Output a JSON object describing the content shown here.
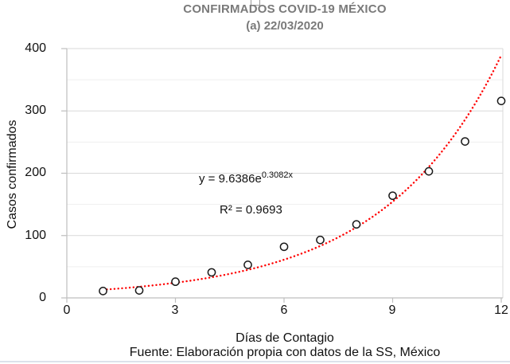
{
  "title": {
    "line1": "CONFIRMADOS COVID-19 MÉXICO",
    "line2": "(a) 22/03/2020"
  },
  "y_axis": {
    "label": "Casos confirmados",
    "tick_labels": [
      "0",
      "100",
      "200",
      "300",
      "400"
    ]
  },
  "x_axis": {
    "label": "Días de Contagio",
    "tick_labels": [
      "0",
      "3",
      "6",
      "9",
      "12"
    ]
  },
  "annotation": {
    "equation_base": "y = 9.6386e",
    "equation_exponent": "0.3082x",
    "r_squared": "R² = 0.9693"
  },
  "footer": {
    "source": "Fuente: Elaboración propia con datos de la SS, México"
  },
  "colors": {
    "title_text": "#7a7a7a",
    "axis_line": "#bfbfbf",
    "grid_major": "#d9d9d9",
    "grid_minor": "#efefef",
    "trendline": "#ff0000",
    "marker_stroke": "#1a1a1a",
    "marker_fill": "#ffffff"
  },
  "chart_data": {
    "type": "scatter",
    "title": "CONFIRMADOS COVID-19 MÉXICO (a) 22/03/2020",
    "xlabel": "Días de Contagio",
    "ylabel": "Casos confirmados",
    "x": [
      1,
      2,
      3,
      4,
      5,
      6,
      7,
      8,
      9,
      10,
      11,
      12
    ],
    "values": [
      11,
      12,
      26,
      41,
      53,
      82,
      93,
      118,
      164,
      203,
      251,
      316
    ],
    "xlim": [
      0,
      12
    ],
    "ylim": [
      0,
      400
    ],
    "x_ticks": [
      0,
      3,
      6,
      9,
      12
    ],
    "y_ticks": [
      0,
      100,
      200,
      300,
      400
    ],
    "grid_major_values": [
      100,
      200,
      300,
      400
    ],
    "grid_minor_values": [
      50,
      150,
      250,
      350
    ],
    "legend": "none",
    "marker": {
      "shape": "open-circle",
      "radius": 4.6
    },
    "trendline": {
      "type": "exponential",
      "a": 9.6386,
      "b": 0.3082,
      "r2": 0.9693,
      "x_start": 1,
      "x_end": 12,
      "style": "dotted",
      "equation_text": "y = 9.6386e^(0.3082x)"
    }
  }
}
